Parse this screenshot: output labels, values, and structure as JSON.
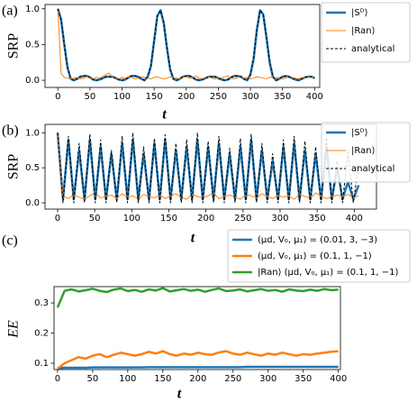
{
  "chart_data": [
    {
      "type": "line",
      "panel_label": "(a)",
      "ylabel": "SRP",
      "xlabel": "t",
      "xlim": [
        -20,
        408
      ],
      "ylim": [
        -0.1,
        1.06
      ],
      "xticks": [
        0,
        50,
        100,
        150,
        200,
        250,
        300,
        350,
        400
      ],
      "yticks": [
        {
          "value": 0,
          "label": "0.0"
        },
        {
          "value": 0.5,
          "label": "0.5"
        },
        {
          "value": 1,
          "label": "1.0"
        }
      ],
      "legend": "outside right",
      "x": [
        0,
        5,
        10,
        15,
        20,
        25,
        30,
        35,
        40,
        45,
        50,
        55,
        60,
        65,
        70,
        75,
        80,
        85,
        90,
        95,
        100,
        105,
        110,
        115,
        120,
        125,
        130,
        135,
        140,
        145,
        150,
        155,
        160,
        165,
        170,
        175,
        180,
        185,
        190,
        195,
        200,
        205,
        210,
        215,
        220,
        225,
        230,
        235,
        240,
        245,
        250,
        255,
        260,
        265,
        270,
        275,
        280,
        285,
        290,
        295,
        300,
        305,
        310,
        315,
        320,
        325,
        330,
        335,
        340,
        345,
        350,
        355,
        360,
        365,
        370,
        375,
        380,
        385,
        390,
        395,
        400
      ],
      "series": [
        {
          "name": "|Sᴰ⟩",
          "color": "#1f77b4",
          "linewidth": 2.5,
          "linestyle": "solid",
          "values": [
            1.0,
            0.85,
            0.5,
            0.18,
            0.02,
            0,
            0.02,
            0.05,
            0.06,
            0.06,
            0.04,
            0.01,
            0,
            0.01,
            0.03,
            0.05,
            0.05,
            0.05,
            0.03,
            0.01,
            0,
            0.01,
            0.04,
            0.06,
            0.06,
            0.05,
            0.02,
            0,
            0.05,
            0.2,
            0.55,
            0.9,
            0.98,
            0.8,
            0.45,
            0.15,
            0.02,
            0,
            0.02,
            0.05,
            0.06,
            0.06,
            0.04,
            0.01,
            0,
            0.01,
            0.03,
            0.05,
            0.05,
            0.05,
            0.03,
            0.01,
            0,
            0.01,
            0.04,
            0.06,
            0.06,
            0.05,
            0.02,
            0,
            0.08,
            0.3,
            0.7,
            0.98,
            0.92,
            0.6,
            0.25,
            0.05,
            0,
            0.02,
            0.05,
            0.06,
            0.05,
            0.03,
            0.01,
            0,
            0.02,
            0.04,
            0.05,
            0.05,
            0.03
          ]
        },
        {
          "name": "|Ran⟩",
          "color": "#ff7f0e",
          "linewidth": 1,
          "linestyle": "solid",
          "values": [
            1.0,
            0.1,
            0.04,
            0.03,
            0.02,
            0.03,
            0.04,
            0.02,
            0.03,
            0.05,
            0.03,
            0.02,
            0.04,
            0.03,
            0.05,
            0.08,
            0.1,
            0.04,
            0.03,
            0.02,
            0.04,
            0.03,
            0.05,
            0.04,
            0.02,
            0.03,
            0.05,
            0.04,
            0.03,
            0.02,
            0.04,
            0.05,
            0.03,
            0.02,
            0.03,
            0.05,
            0.04,
            0.03,
            0.02,
            0.04,
            0.05,
            0.03,
            0.04,
            0.06,
            0.03,
            0.02,
            0.04,
            0.05,
            0.03,
            0.02,
            0.04,
            0.03,
            0.05,
            0.06,
            0.03,
            0.02,
            0.04,
            0.05,
            0.03,
            0.04,
            0.02,
            0.03,
            0.05,
            0.04,
            0.03,
            0.02,
            0.04,
            0.05,
            0.03,
            0.04,
            0.02,
            0.03,
            0.05,
            0.04,
            0.03,
            0.02,
            0.04,
            0.03,
            0.05,
            0.04,
            0.03
          ]
        },
        {
          "name": "analytical",
          "color": "#000000",
          "linewidth": 1,
          "linestyle": "dashed",
          "values": [
            1.0,
            0.85,
            0.5,
            0.18,
            0.02,
            0,
            0.02,
            0.05,
            0.06,
            0.06,
            0.04,
            0.01,
            0,
            0.01,
            0.03,
            0.05,
            0.05,
            0.05,
            0.03,
            0.01,
            0,
            0.01,
            0.04,
            0.06,
            0.06,
            0.05,
            0.02,
            0,
            0.05,
            0.2,
            0.55,
            0.9,
            0.98,
            0.8,
            0.45,
            0.15,
            0.02,
            0,
            0.02,
            0.05,
            0.06,
            0.06,
            0.04,
            0.01,
            0,
            0.01,
            0.03,
            0.05,
            0.05,
            0.05,
            0.03,
            0.01,
            0,
            0.01,
            0.04,
            0.06,
            0.06,
            0.05,
            0.02,
            0,
            0.08,
            0.3,
            0.7,
            0.98,
            0.92,
            0.6,
            0.25,
            0.05,
            0,
            0.02,
            0.05,
            0.06,
            0.05,
            0.03,
            0.01,
            0,
            0.02,
            0.04,
            0.05,
            0.05,
            0.03
          ]
        }
      ]
    },
    {
      "type": "line",
      "panel_label": "(b)",
      "ylabel": "SRP",
      "xlabel": "t",
      "xlim": [
        -17,
        430
      ],
      "ylim": [
        -0.09,
        1.12
      ],
      "xticks": [
        0,
        50,
        100,
        150,
        200,
        250,
        300,
        350,
        400
      ],
      "yticks": [
        {
          "value": 0,
          "label": "0.0"
        },
        {
          "value": 0.5,
          "label": "0.5"
        },
        {
          "value": 1,
          "label": "1.0"
        }
      ],
      "legend": "outside right",
      "x": [
        0,
        7.25,
        14.5,
        21.75,
        29,
        36.25,
        43.5,
        50.75,
        58,
        65.25,
        72.5,
        79.75,
        87,
        94.25,
        101.5,
        108.75,
        116,
        123.25,
        130.5,
        137.75,
        145,
        152.25,
        159.5,
        166.75,
        174,
        181.25,
        188.5,
        195.75,
        203,
        210.25,
        217.5,
        224.75,
        232,
        239.25,
        246.5,
        253.75,
        261,
        268.25,
        275.5,
        282.75,
        290,
        297.25,
        304.5,
        311.75,
        319,
        326.25,
        333.5,
        340.75,
        348,
        355.25,
        362.5,
        369.75,
        377,
        384.25,
        391.5,
        398.75,
        406
      ],
      "series": [
        {
          "name": "|Sᴰ⟩",
          "color": "#1f77b4",
          "linewidth": 2.5,
          "linestyle": "solid",
          "values": [
            1.0,
            0.05,
            0.9,
            0.05,
            0.75,
            0.05,
            0.9,
            0.05,
            0.8,
            0.05,
            0.7,
            0.05,
            0.85,
            0.05,
            0.9,
            0.05,
            0.7,
            0.05,
            0.85,
            0.05,
            0.9,
            0.05,
            0.75,
            0.05,
            0.8,
            0.05,
            0.9,
            0.05,
            0.8,
            0.05,
            0.85,
            0.05,
            0.7,
            0.05,
            0.8,
            0.05,
            0.9,
            0.05,
            0.75,
            0.05,
            0.6,
            0.05,
            0.8,
            0.05,
            0.85,
            0.05,
            0.75,
            0.05,
            0.7,
            0.05,
            0.8,
            0.05,
            0.5,
            0.05,
            0.3,
            0.05,
            0.25
          ]
        },
        {
          "name": "|Ran⟩",
          "color": "#ff7f0e",
          "linewidth": 1,
          "linestyle": "solid",
          "values": [
            1.0,
            0.1,
            0.06,
            0.12,
            0.08,
            0.05,
            0.1,
            0.14,
            0.07,
            0.09,
            0.11,
            0.06,
            0.13,
            0.08,
            0.1,
            0.05,
            0.12,
            0.09,
            0.07,
            0.11,
            0.06,
            0.1,
            0.13,
            0.08,
            0.05,
            0.12,
            0.09,
            0.07,
            0.1,
            0.14,
            0.06,
            0.09,
            0.11,
            0.08,
            0.05,
            0.12,
            0.1,
            0.07,
            0.13,
            0.09,
            0.06,
            0.11,
            0.08,
            0.1,
            0.05,
            0.12,
            0.09,
            0.07,
            0.14,
            0.1,
            0.06,
            0.08,
            0.11,
            0.09,
            0.12,
            0.07,
            0.1
          ]
        },
        {
          "name": "analytical",
          "color": "#000000",
          "linewidth": 1,
          "linestyle": "dashed",
          "values": [
            1.0,
            0,
            0.95,
            0,
            0.85,
            0,
            0.98,
            0,
            0.9,
            0,
            0.75,
            0,
            0.95,
            0,
            1.0,
            0,
            0.8,
            0,
            0.92,
            0,
            0.97,
            0,
            0.85,
            0,
            0.9,
            0,
            1.0,
            0,
            0.88,
            0,
            0.95,
            0,
            0.78,
            0,
            0.92,
            0,
            0.98,
            0,
            0.85,
            0,
            0.7,
            0,
            0.9,
            0,
            0.95,
            0,
            0.88,
            0,
            0.8,
            0,
            0.93,
            0,
            0.6,
            0,
            0.75,
            0,
            0.55
          ]
        }
      ]
    },
    {
      "type": "line",
      "panel_label": "(c)",
      "ylabel": "EE",
      "xlabel": "t",
      "xlim": [
        -5,
        403
      ],
      "ylim": [
        0.079,
        0.354
      ],
      "xticks": [
        0,
        50,
        100,
        150,
        200,
        250,
        300,
        350,
        400
      ],
      "yticks": [
        0.1,
        0.2,
        0.3
      ],
      "legend": "above",
      "x": [
        0,
        10,
        20,
        30,
        40,
        50,
        60,
        70,
        80,
        90,
        100,
        110,
        120,
        130,
        140,
        150,
        160,
        170,
        180,
        190,
        200,
        210,
        220,
        230,
        240,
        250,
        260,
        270,
        280,
        290,
        300,
        310,
        320,
        330,
        340,
        350,
        360,
        370,
        380,
        390,
        400
      ],
      "series": [
        {
          "name": "(μd, V₀, μ₁) = (0.01, 3, −3)",
          "color": "#1f77b4",
          "linewidth": 2.5,
          "linestyle": "solid",
          "values": [
            0.084,
            0.085,
            0.085,
            0.085,
            0.085,
            0.086,
            0.086,
            0.086,
            0.086,
            0.086,
            0.086,
            0.086,
            0.086,
            0.087,
            0.087,
            0.087,
            0.087,
            0.087,
            0.087,
            0.087,
            0.087,
            0.087,
            0.087,
            0.087,
            0.087,
            0.087,
            0.087,
            0.088,
            0.088,
            0.088,
            0.088,
            0.088,
            0.088,
            0.088,
            0.088,
            0.088,
            0.088,
            0.088,
            0.088,
            0.088,
            0.088
          ]
        },
        {
          "name": "(μd, V₀, μ₁) = (0.1, 1, −1)",
          "color": "#ff7f0e",
          "linewidth": 2.5,
          "linestyle": "solid",
          "values": [
            0.082,
            0.1,
            0.11,
            0.12,
            0.115,
            0.125,
            0.13,
            0.12,
            0.128,
            0.135,
            0.13,
            0.125,
            0.13,
            0.138,
            0.132,
            0.14,
            0.13,
            0.125,
            0.132,
            0.128,
            0.135,
            0.13,
            0.128,
            0.136,
            0.14,
            0.132,
            0.128,
            0.135,
            0.13,
            0.125,
            0.132,
            0.128,
            0.135,
            0.13,
            0.125,
            0.13,
            0.128,
            0.132,
            0.135,
            0.138,
            0.14
          ]
        },
        {
          "name": "|Ran⟩ (μd, V₀, μ₁) = (0.1, 1, −1)",
          "color": "#2ca02c",
          "linewidth": 2.5,
          "linestyle": "solid",
          "values": [
            0.285,
            0.34,
            0.345,
            0.338,
            0.342,
            0.347,
            0.34,
            0.336,
            0.344,
            0.348,
            0.339,
            0.343,
            0.337,
            0.345,
            0.341,
            0.349,
            0.338,
            0.342,
            0.346,
            0.34,
            0.344,
            0.337,
            0.343,
            0.348,
            0.339,
            0.341,
            0.345,
            0.338,
            0.342,
            0.346,
            0.34,
            0.343,
            0.337,
            0.345,
            0.341,
            0.339,
            0.344,
            0.34,
            0.346,
            0.342,
            0.344
          ]
        }
      ]
    }
  ]
}
